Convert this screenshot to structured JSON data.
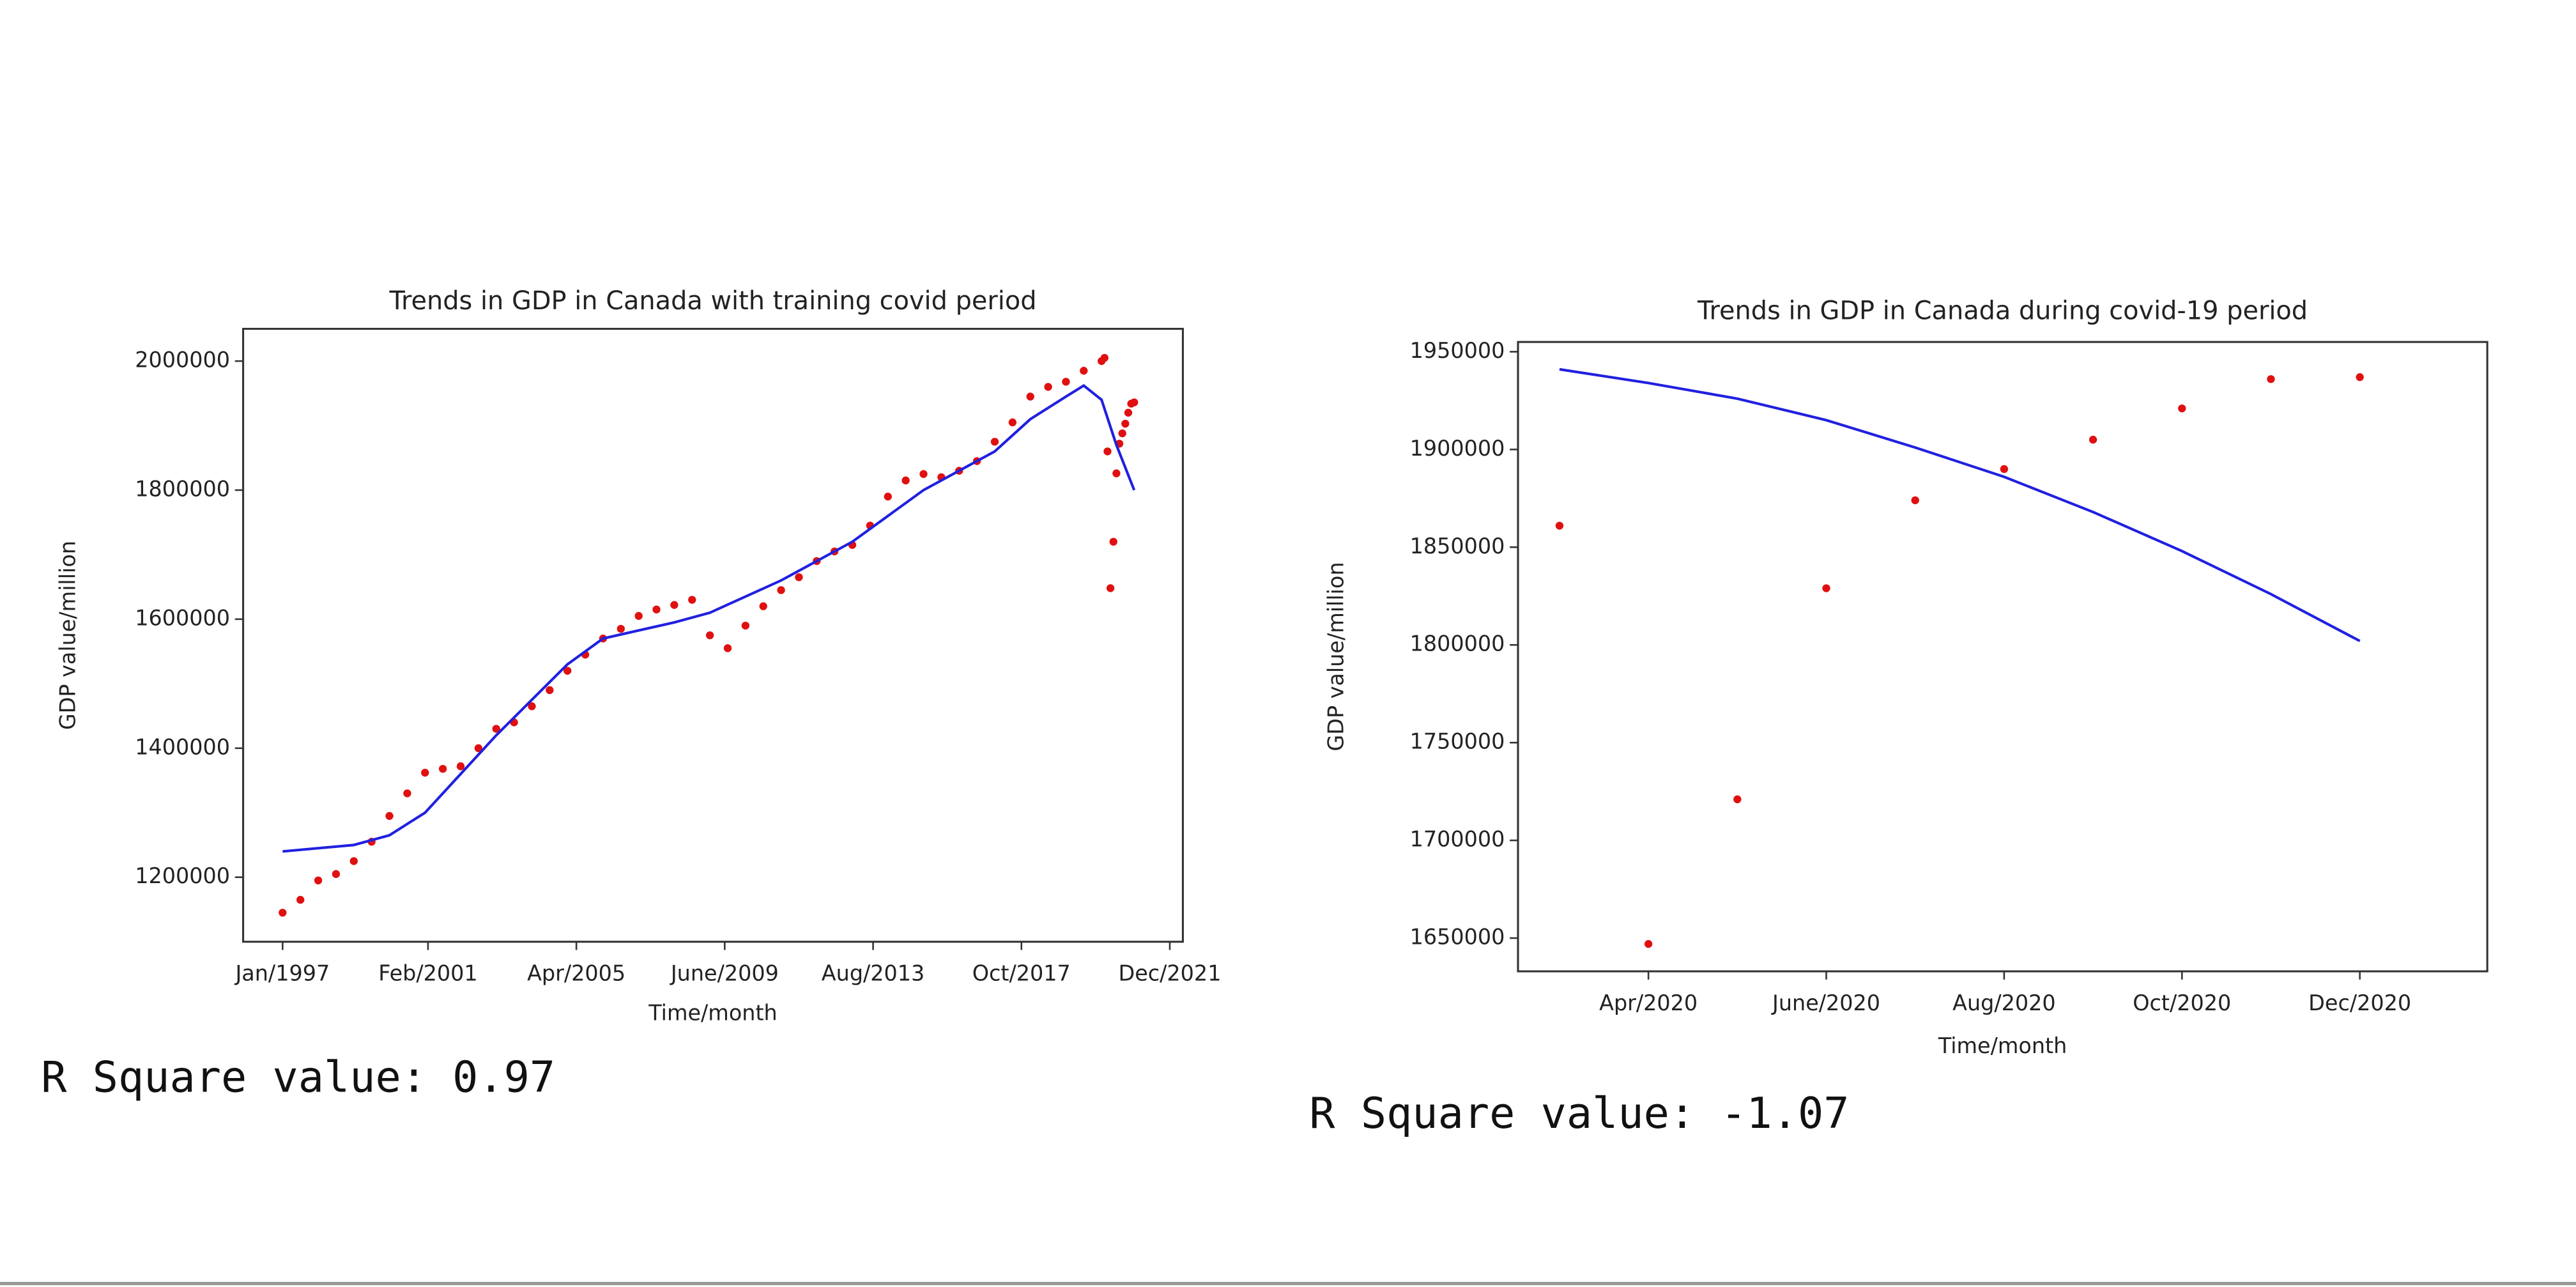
{
  "chart_data": [
    {
      "type": "scatter",
      "title": "Trends in GDP in Canada with training covid period",
      "x_label": "Time/month",
      "y_label": "GDP value/million",
      "annotation": "R Square value: 0.97",
      "xlim": [
        "1995-11-22",
        "2022-04-13"
      ],
      "ylim": [
        1100000,
        2050000
      ],
      "xticks": [
        {
          "value": "1997-01",
          "label": "Jan/1997"
        },
        {
          "value": "2001-02",
          "label": "Feb/2001"
        },
        {
          "value": "2005-04",
          "label": "Apr/2005"
        },
        {
          "value": "2009-06",
          "label": "June/2009"
        },
        {
          "value": "2013-08",
          "label": "Aug/2013"
        },
        {
          "value": "2017-10",
          "label": "Oct/2017"
        },
        {
          "value": "2021-12",
          "label": "Dec/2021"
        }
      ],
      "yticks": [
        1200000,
        1400000,
        1600000,
        1800000,
        2000000
      ],
      "series": [
        {
          "style": "scatter",
          "color": "#e01010",
          "x": [
            "1997-01",
            "1997-07",
            "1998-01",
            "1998-07",
            "1999-01",
            "1999-07",
            "2000-01",
            "2000-07",
            "2001-01",
            "2001-07",
            "2002-01",
            "2002-07",
            "2003-01",
            "2003-07",
            "2004-01",
            "2004-07",
            "2005-01",
            "2005-07",
            "2006-01",
            "2006-07",
            "2007-01",
            "2007-07",
            "2008-01",
            "2008-07",
            "2009-01",
            "2009-07",
            "2010-01",
            "2010-07",
            "2011-01",
            "2011-07",
            "2012-01",
            "2012-07",
            "2013-01",
            "2013-07",
            "2014-01",
            "2014-07",
            "2015-01",
            "2015-07",
            "2016-01",
            "2016-07",
            "2017-01",
            "2017-07",
            "2018-01",
            "2018-07",
            "2019-01",
            "2019-07",
            "2020-01",
            "2020-02",
            "2020-03",
            "2020-04",
            "2020-05",
            "2020-06",
            "2020-07",
            "2020-08",
            "2020-09",
            "2020-10",
            "2020-11",
            "2020-12"
          ],
          "values": [
            1145000,
            1165000,
            1195000,
            1205000,
            1225000,
            1255000,
            1295000,
            1330000,
            1362000,
            1368000,
            1372000,
            1400000,
            1430000,
            1440000,
            1465000,
            1490000,
            1520000,
            1545000,
            1570000,
            1585000,
            1605000,
            1615000,
            1622000,
            1630000,
            1575000,
            1555000,
            1590000,
            1620000,
            1645000,
            1665000,
            1690000,
            1705000,
            1715000,
            1745000,
            1790000,
            1815000,
            1825000,
            1820000,
            1830000,
            1845000,
            1875000,
            1905000,
            1945000,
            1960000,
            1968000,
            1985000,
            2000000,
            2005000,
            1860000,
            1648000,
            1720000,
            1826000,
            1872000,
            1888000,
            1903000,
            1920000,
            1934000,
            1936000
          ]
        },
        {
          "style": "line",
          "color": "#2020e0",
          "x": [
            "1997-01",
            "1999-01",
            "2000-01",
            "2001-01",
            "2003-01",
            "2005-01",
            "2006-01",
            "2008-01",
            "2009-01",
            "2011-01",
            "2013-01",
            "2015-01",
            "2017-01",
            "2018-01",
            "2019-01",
            "2019-07",
            "2020-01",
            "2020-06",
            "2020-12"
          ],
          "values": [
            1240000,
            1250000,
            1265000,
            1300000,
            1420000,
            1530000,
            1570000,
            1595000,
            1610000,
            1660000,
            1720000,
            1800000,
            1860000,
            1910000,
            1945000,
            1962000,
            1940000,
            1870000,
            1800000
          ]
        }
      ]
    },
    {
      "type": "scatter",
      "title": "Trends in GDP in Canada during covid-19 period",
      "x_label": "Time/month",
      "y_label": "GDP value/million",
      "annotation": "R Square value: -1.07",
      "xlim": [
        "2020-02-17",
        "2021-01-14"
      ],
      "ylim": [
        1633000,
        1955000
      ],
      "xticks": [
        {
          "value": "2020-04",
          "label": "Apr/2020"
        },
        {
          "value": "2020-06",
          "label": "June/2020"
        },
        {
          "value": "2020-08",
          "label": "Aug/2020"
        },
        {
          "value": "2020-10",
          "label": "Oct/2020"
        },
        {
          "value": "2020-12",
          "label": "Dec/2020"
        }
      ],
      "yticks": [
        1650000,
        1700000,
        1750000,
        1800000,
        1850000,
        1900000,
        1950000
      ],
      "series": [
        {
          "style": "scatter",
          "color": "#e01010",
          "x": [
            "2020-03",
            "2020-04",
            "2020-05",
            "2020-06",
            "2020-07",
            "2020-08",
            "2020-09",
            "2020-10",
            "2020-11",
            "2020-12"
          ],
          "values": [
            1861000,
            1647000,
            1721000,
            1829000,
            1874000,
            1890000,
            1905000,
            1921000,
            1936000,
            1937000
          ]
        },
        {
          "style": "line",
          "color": "#2020e0",
          "x": [
            "2020-03",
            "2020-04",
            "2020-05",
            "2020-06",
            "2020-07",
            "2020-08",
            "2020-09",
            "2020-10",
            "2020-11",
            "2020-12"
          ],
          "values": [
            1941000,
            1934000,
            1926000,
            1915000,
            1901000,
            1886000,
            1868000,
            1848000,
            1826000,
            1802000
          ]
        }
      ]
    }
  ]
}
